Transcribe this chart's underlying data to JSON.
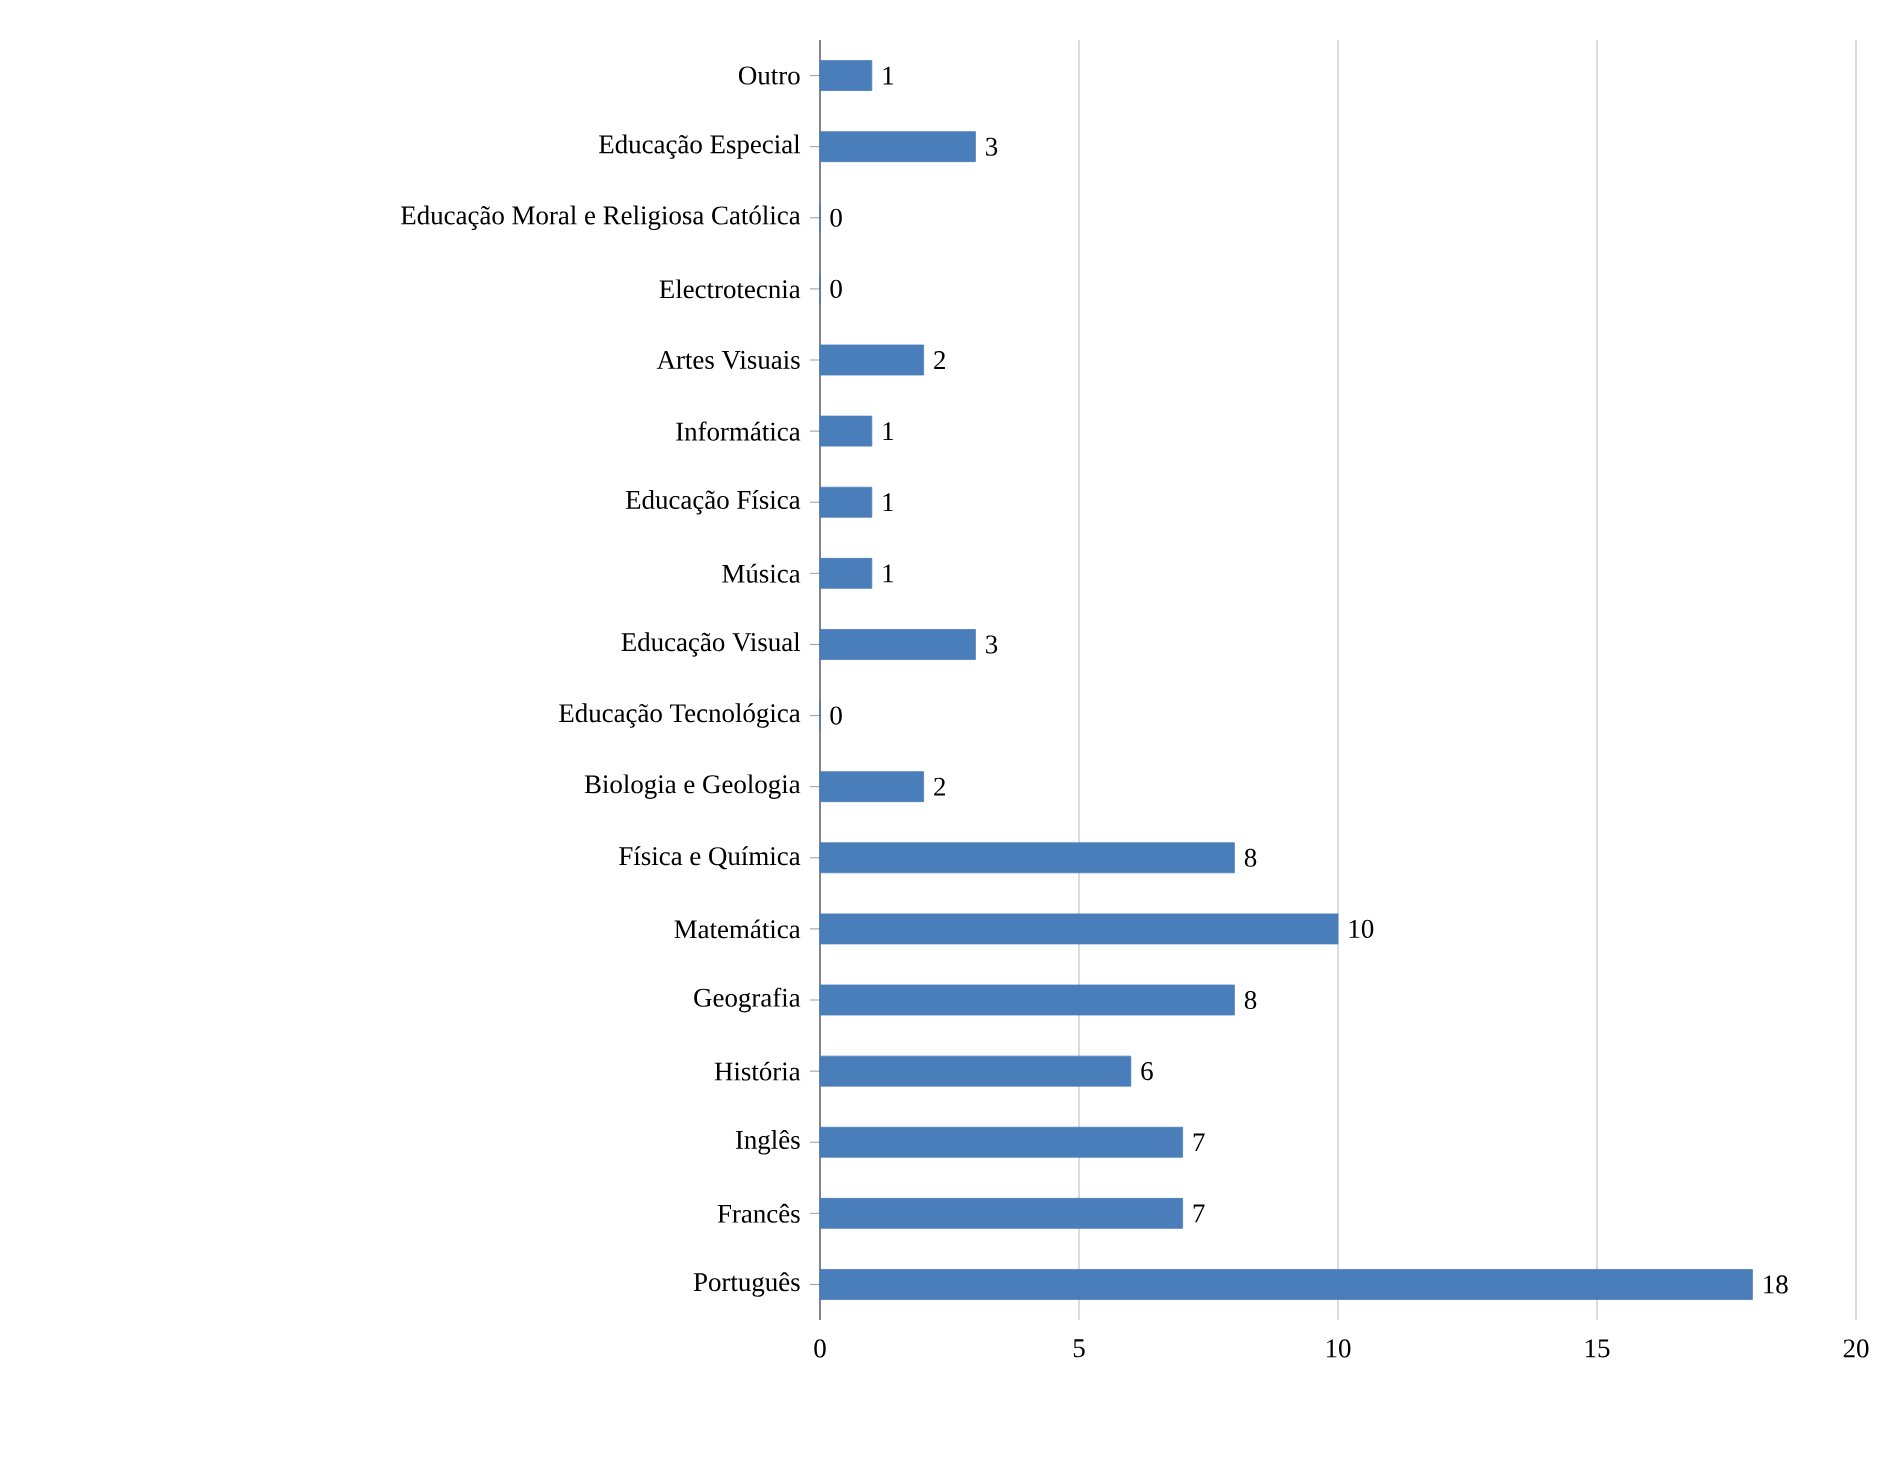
{
  "chart_data": {
    "type": "bar",
    "orientation": "horizontal",
    "categories": [
      "Outro",
      "Educação Especial",
      "Educação Moral e Religiosa Católica",
      "Electrotecnia",
      "Artes Visuais",
      "Informática",
      "Educação Física",
      "Música",
      "Educação Visual",
      "Educação Tecnológica",
      "Biologia e Geologia",
      "Física e Química",
      "Matemática",
      "Geografia",
      "História",
      "Inglês",
      "Francês",
      "Português"
    ],
    "values": [
      1,
      3,
      0,
      0,
      2,
      1,
      1,
      1,
      3,
      0,
      2,
      8,
      10,
      8,
      6,
      7,
      7,
      18
    ],
    "color": "#4a7ebb",
    "xlim": [
      0,
      20
    ],
    "xticks": [
      0,
      5,
      10,
      15,
      20
    ],
    "grid": "x",
    "data_labels": true
  }
}
